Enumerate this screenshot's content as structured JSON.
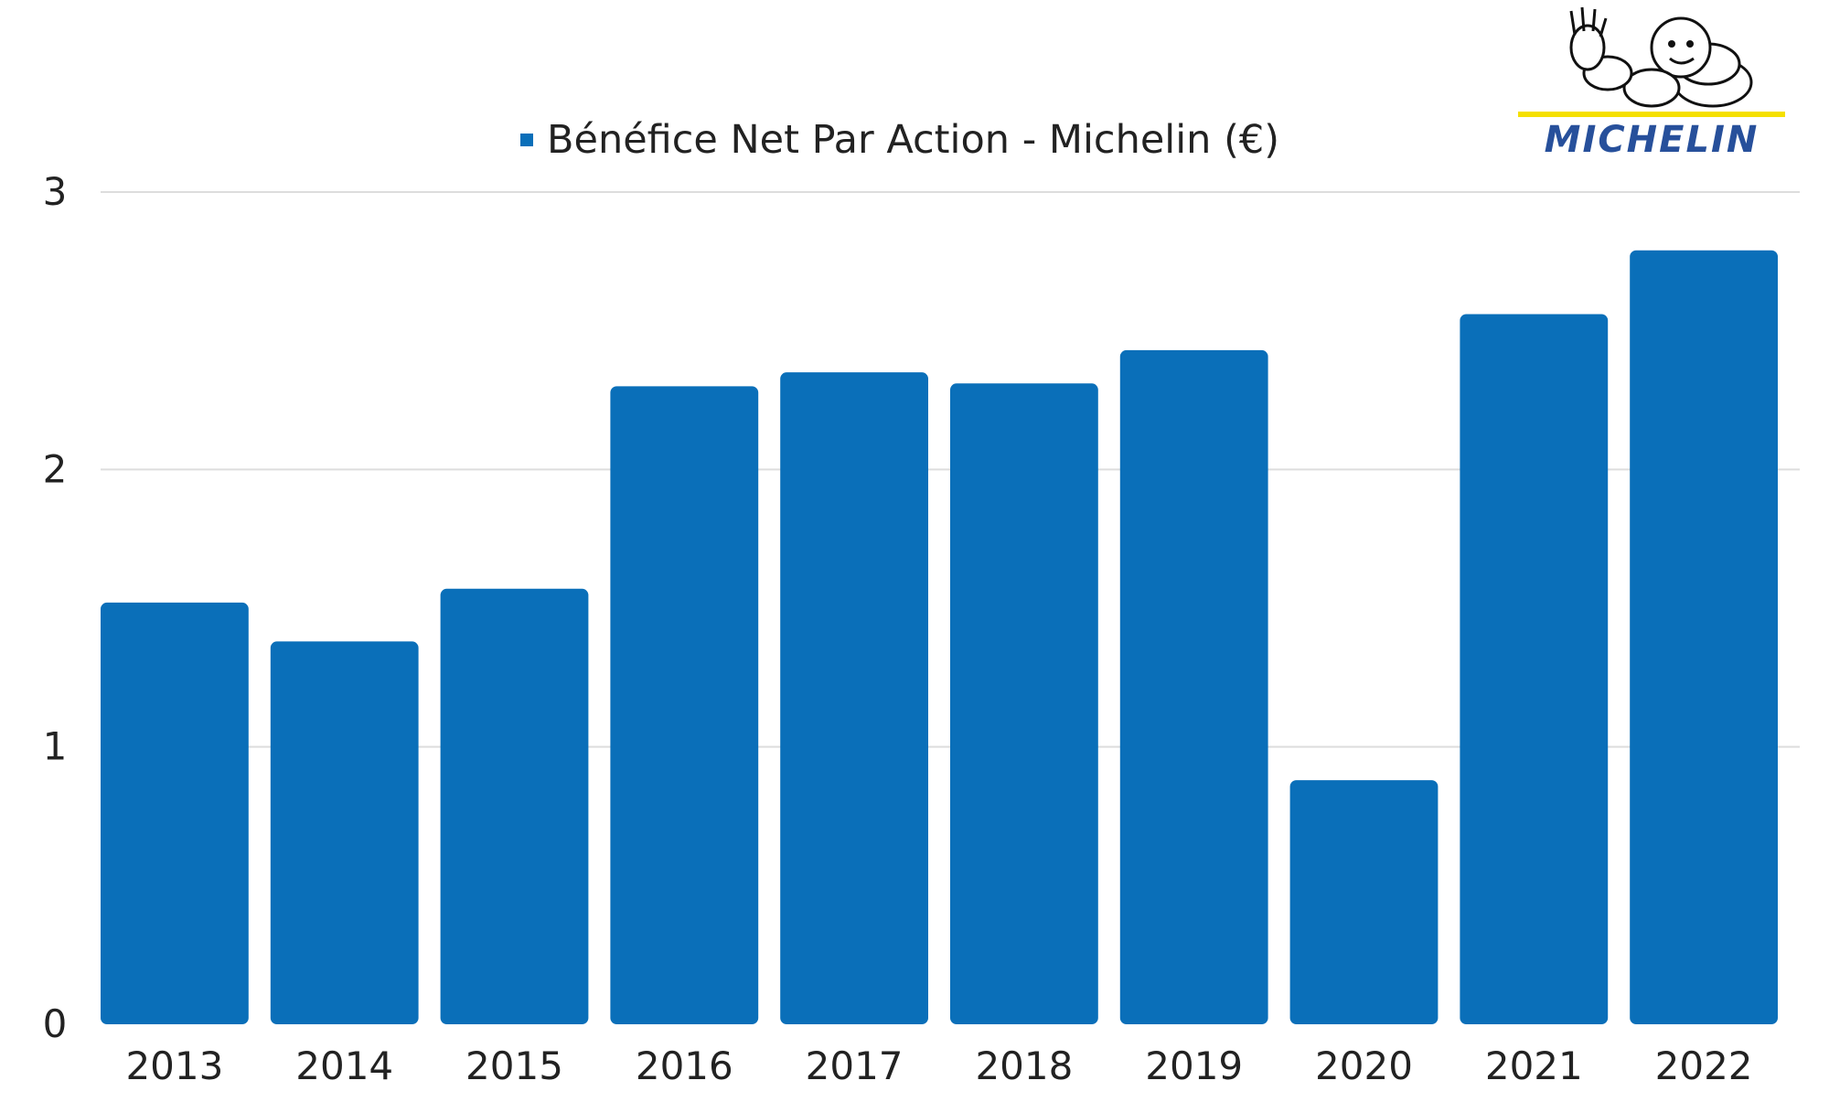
{
  "colors": {
    "bar": "#0a6fb9",
    "grid": "#dddddd",
    "text": "#222222",
    "brand_yellow": "#f5e000",
    "brand_blue": "#27509b"
  },
  "logo": {
    "text": "MICHELIN",
    "icon": "bibendum-mascot-icon"
  },
  "chart_data": {
    "type": "bar",
    "title": "",
    "xlabel": "",
    "ylabel": "",
    "ylim": [
      0,
      3
    ],
    "yticks": [
      0,
      1,
      2,
      3
    ],
    "grid": true,
    "legend_position": "top",
    "categories": [
      "2013",
      "2014",
      "2015",
      "2016",
      "2017",
      "2018",
      "2019",
      "2020",
      "2021",
      "2022"
    ],
    "series": [
      {
        "name": "Bénéfice Net Par Action - Michelin (€)",
        "values": [
          1.52,
          1.38,
          1.57,
          2.3,
          2.35,
          2.31,
          2.43,
          0.88,
          2.56,
          2.79
        ]
      }
    ]
  }
}
